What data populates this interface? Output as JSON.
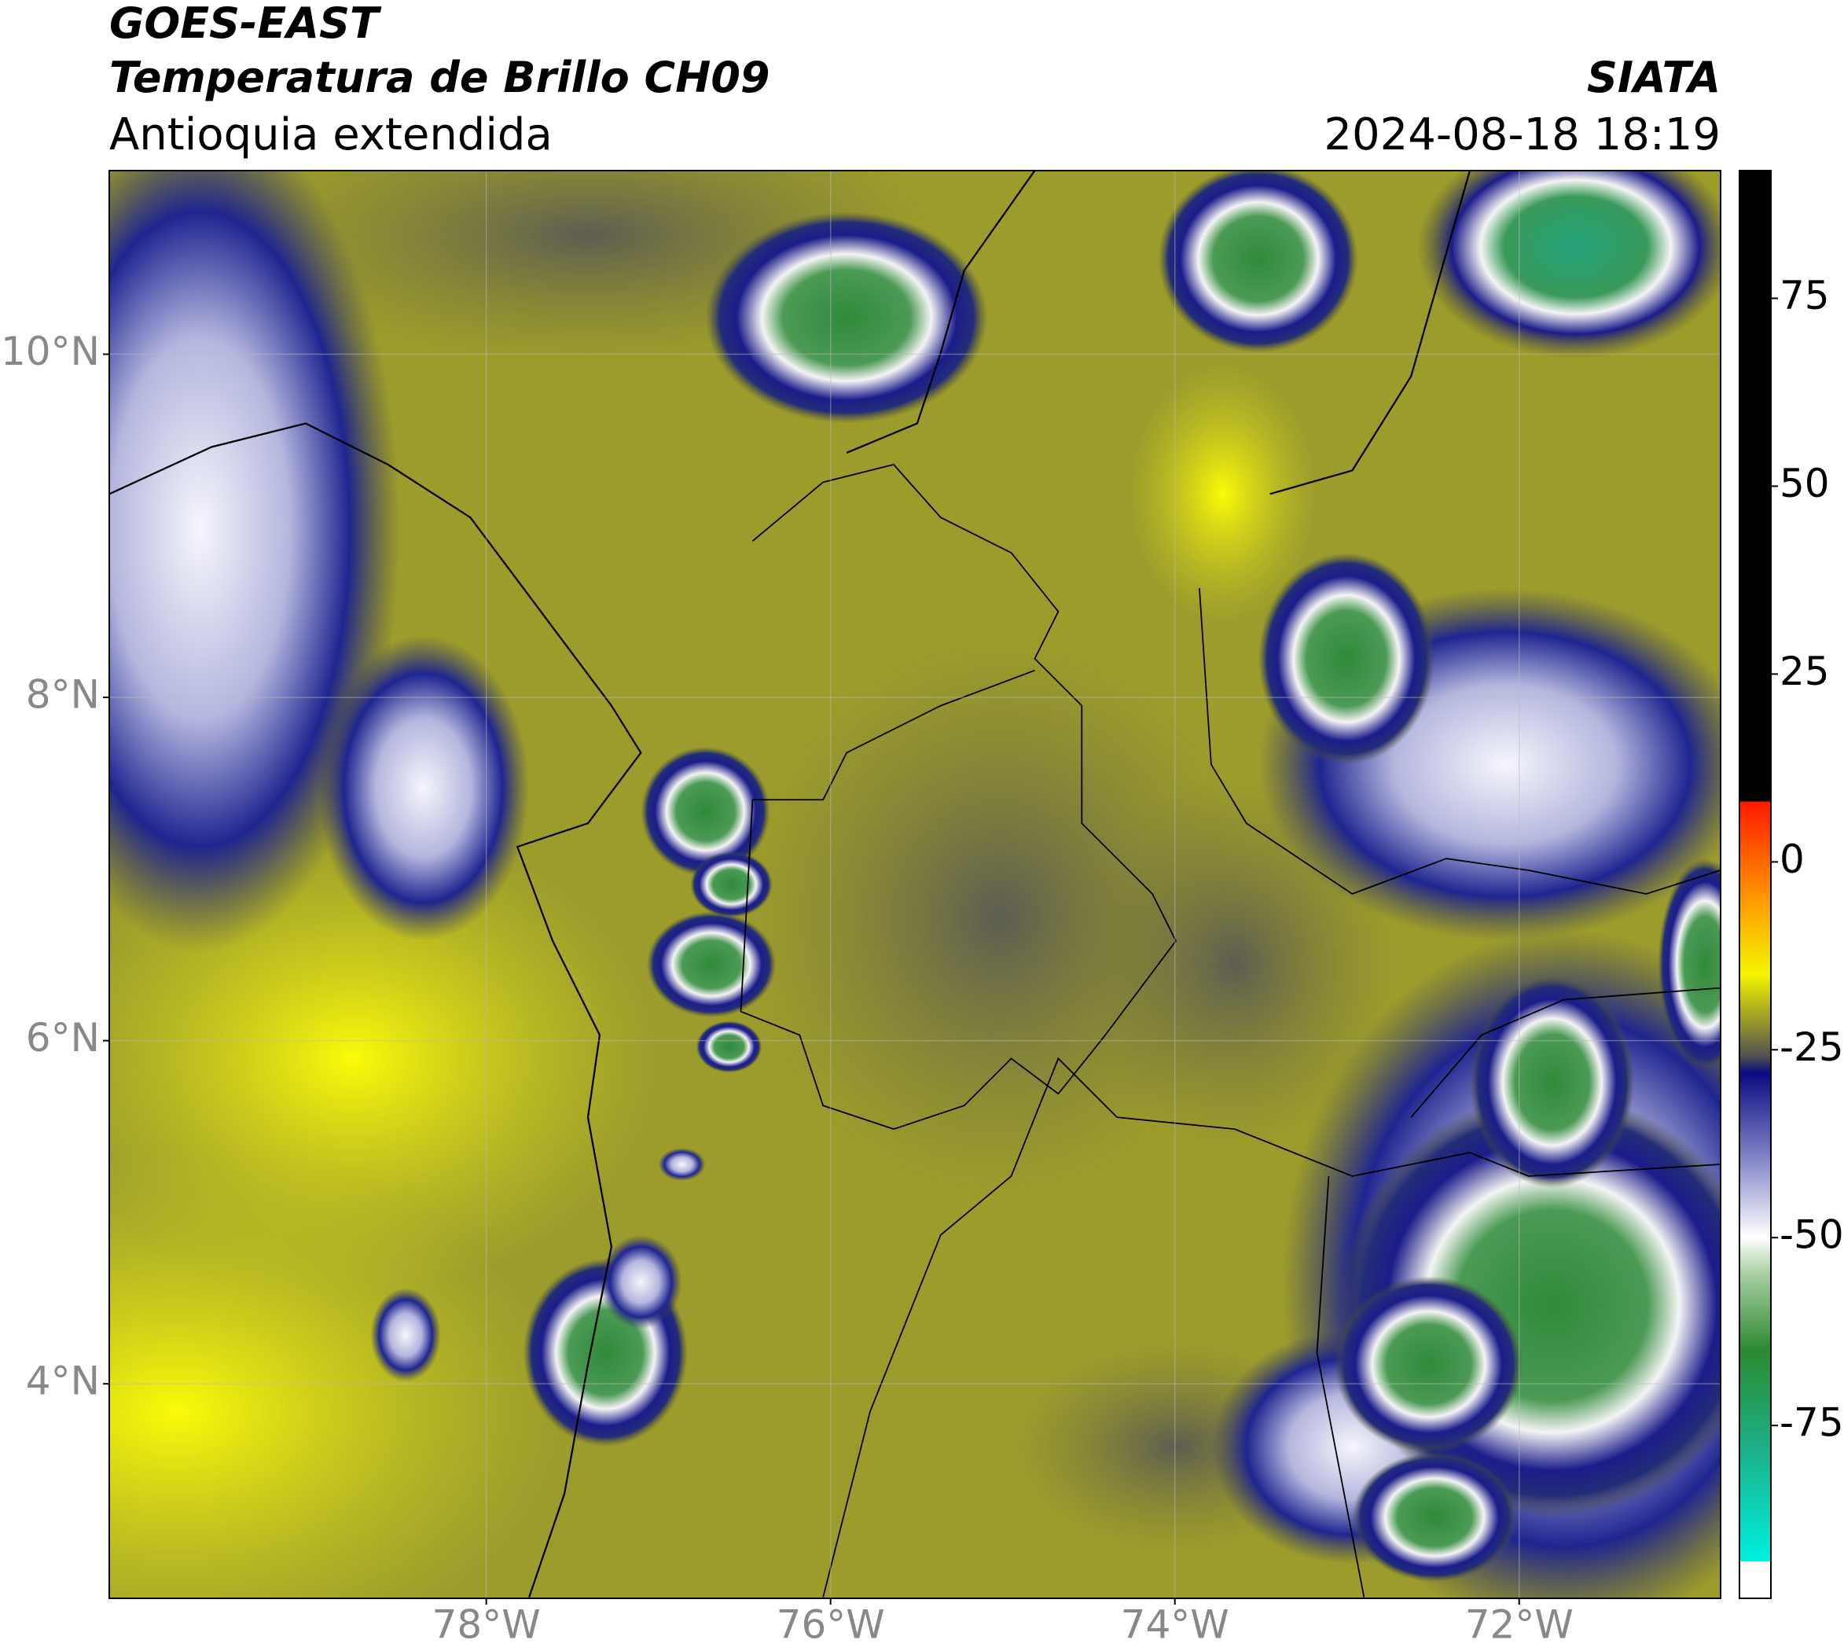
{
  "header": {
    "satellite": "GOES-EAST",
    "product": "Temperatura de Brillo CH09",
    "region": "Antioquia extendida",
    "agency": "SIATA",
    "datetime": "2024-08-18 18:19"
  },
  "map": {
    "xlim": [
      -80.19,
      -70.83
    ],
    "ylim": [
      2.75,
      11.07
    ],
    "xticks": [
      {
        "value": -78,
        "label": "78°W"
      },
      {
        "value": -76,
        "label": "76°W"
      },
      {
        "value": -74,
        "label": "74°W"
      },
      {
        "value": -72,
        "label": "72°W"
      }
    ],
    "yticks": [
      {
        "value": 4,
        "label": "4°N"
      },
      {
        "value": 6,
        "label": "6°N"
      },
      {
        "value": 8,
        "label": "8°N"
      },
      {
        "value": 10,
        "label": "10°N"
      }
    ],
    "grid": true
  },
  "colorbar": {
    "lim": [
      -98,
      92
    ],
    "ticks": [
      75,
      50,
      25,
      0,
      -25,
      -50,
      -75
    ]
  }
}
